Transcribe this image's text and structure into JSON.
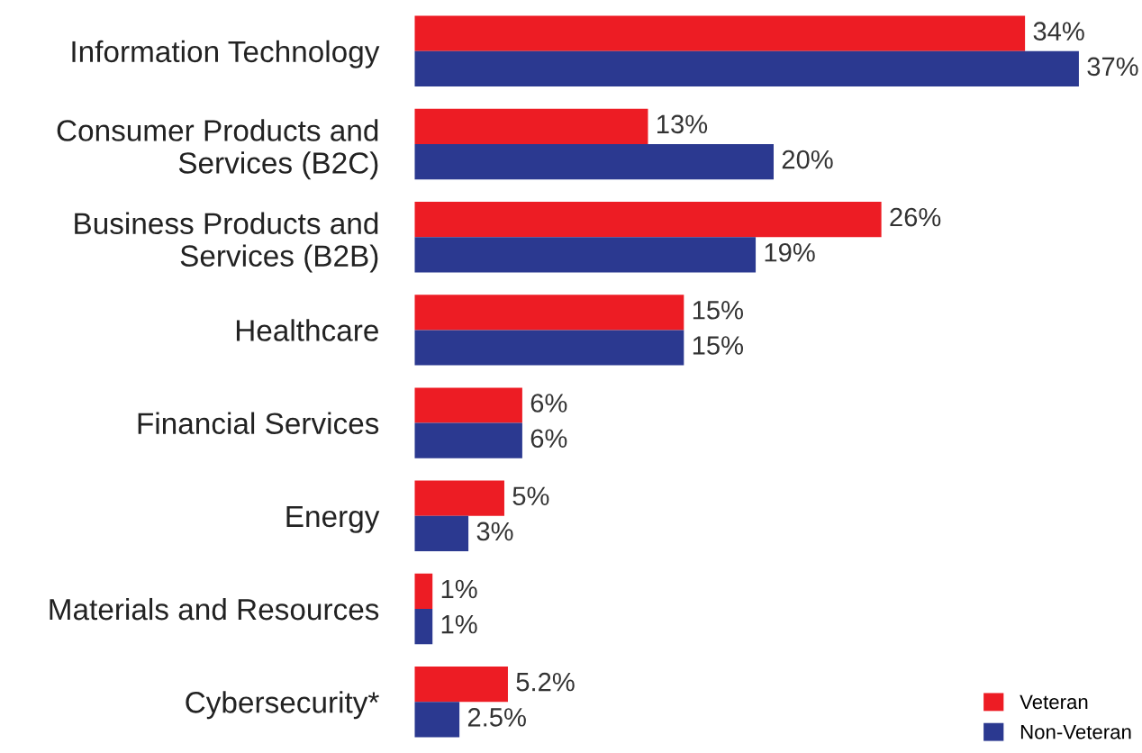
{
  "chart_data": {
    "type": "bar",
    "orientation": "horizontal",
    "categories": [
      "Information Technology",
      "Consumer Products and\nServices (B2C)",
      "Business Products and\nServices (B2B)",
      "Healthcare",
      "Financial Services",
      "Energy",
      "Materials and Resources",
      "Cybersecurity*"
    ],
    "series": [
      {
        "name": "Veteran",
        "color": "#ed1c24",
        "values": [
          34,
          13,
          26,
          15,
          6,
          5,
          1,
          5.2
        ],
        "value_labels": [
          "34%",
          "13%",
          "26%",
          "15%",
          "6%",
          "5%",
          "1%",
          "5.2%"
        ]
      },
      {
        "name": "Non-Veteran",
        "color": "#2b3990",
        "values": [
          37,
          20,
          19,
          15,
          6,
          3,
          1,
          2.5
        ],
        "value_labels": [
          "37%",
          "20%",
          "19%",
          "15%",
          "6%",
          "3%",
          "1%",
          "2.5%"
        ]
      }
    ],
    "legend": "bottom right",
    "grid": false
  }
}
